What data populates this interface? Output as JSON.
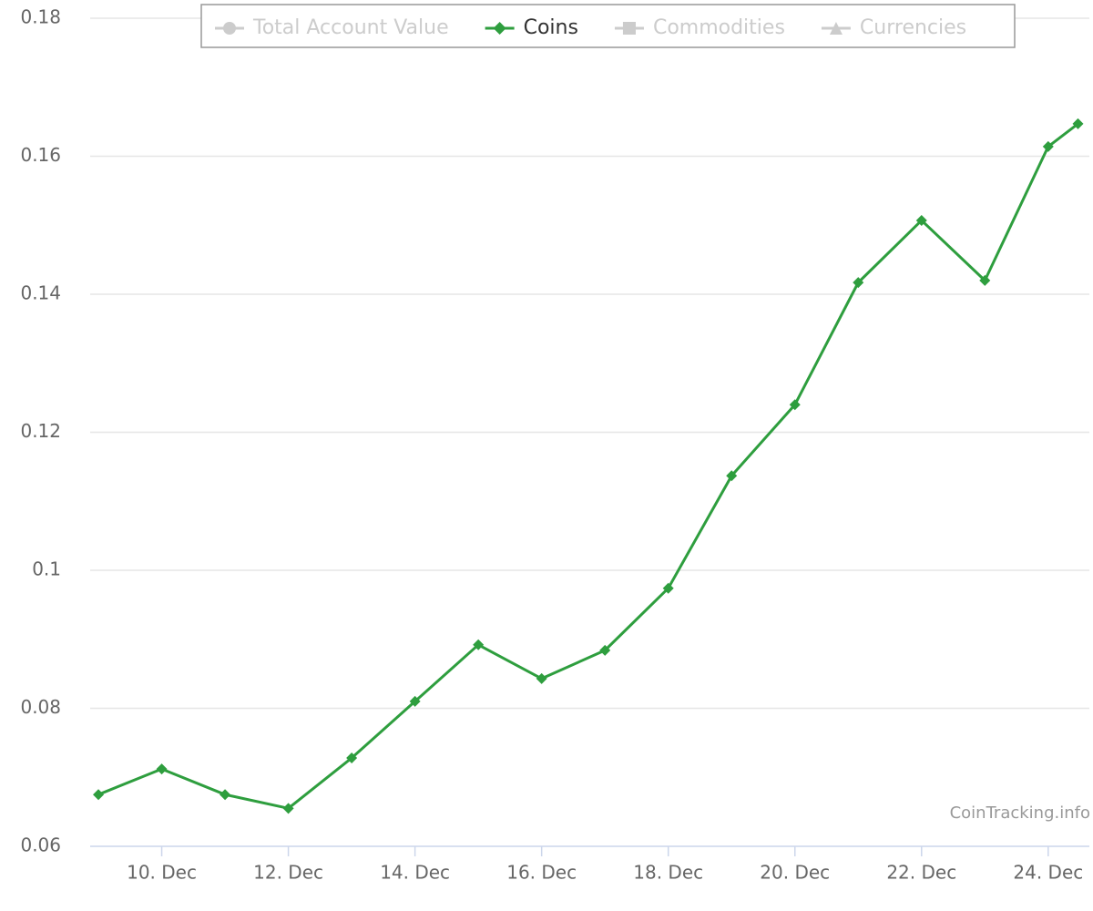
{
  "chart_data": {
    "type": "line",
    "x": [
      9,
      10,
      11,
      12,
      13,
      14,
      15,
      16,
      17,
      18,
      19,
      20,
      21,
      22,
      23,
      24,
      24.47
    ],
    "xlim": [
      8.87,
      24.65
    ],
    "xticks": [
      {
        "value": 10,
        "label": "10. Dec"
      },
      {
        "value": 12,
        "label": "12. Dec"
      },
      {
        "value": 14,
        "label": "14. Dec"
      },
      {
        "value": 16,
        "label": "16. Dec"
      },
      {
        "value": 18,
        "label": "18. Dec"
      },
      {
        "value": 20,
        "label": "20. Dec"
      },
      {
        "value": 22,
        "label": "22. Dec"
      },
      {
        "value": 24,
        "label": "24. Dec"
      }
    ],
    "ylim": [
      0.06,
      0.18
    ],
    "yticks": [
      0.06,
      0.08,
      0.1,
      0.12,
      0.14,
      0.16,
      0.18
    ],
    "grid": true,
    "legend": "top",
    "series": [
      {
        "name": "Total Account Value",
        "marker": "circle",
        "visible": false
      },
      {
        "name": "Coins",
        "marker": "diamond",
        "visible": true,
        "color": "#2e9e3e",
        "values": [
          0.0675,
          0.0712,
          0.0675,
          0.0655,
          0.0728,
          0.081,
          0.0892,
          0.0843,
          0.0884,
          0.0974,
          0.1137,
          0.124,
          0.1417,
          0.1507,
          0.142,
          0.1614,
          0.1647
        ]
      },
      {
        "name": "Commodities",
        "marker": "square",
        "visible": false
      },
      {
        "name": "Currencies",
        "marker": "triangle",
        "visible": false
      }
    ],
    "credit": "CoinTracking.info"
  }
}
